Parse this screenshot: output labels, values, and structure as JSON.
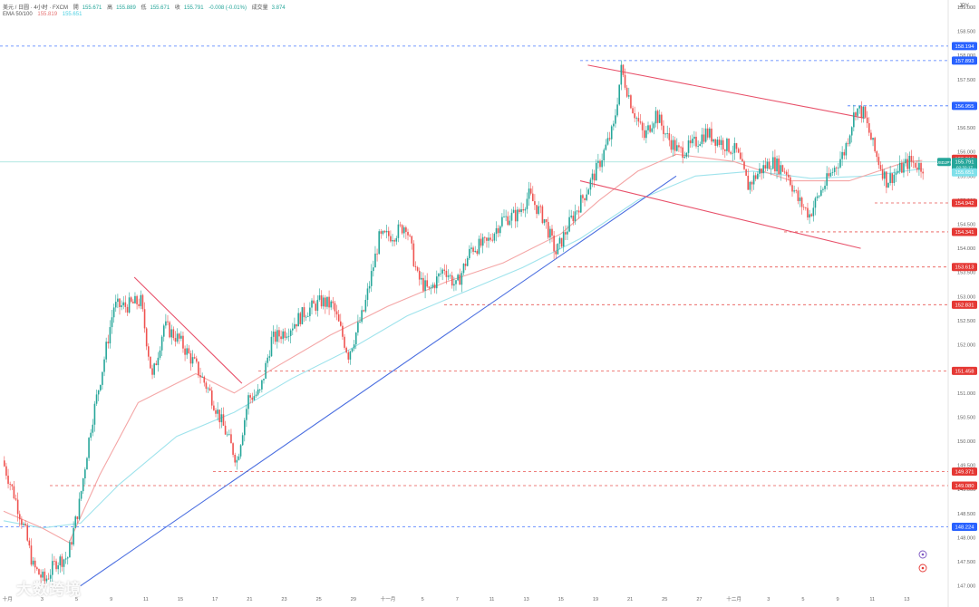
{
  "header": {
    "symbol_line": "美元 / 日圆 · 4小时 · FXCM",
    "open_label": "開",
    "open_value": "155.671",
    "high_label": "高",
    "high_value": "155.889",
    "low_label": "低",
    "low_value": "155.671",
    "close_label": "收",
    "close_value": "155.791",
    "change": "-0.008 (-0.01%)",
    "volume_label": "成交量",
    "volume_value": "3.874",
    "ema_label": "EMA 50/100",
    "ema50_value": "155.819",
    "ema100_value": "155.651"
  },
  "currency": "JPY",
  "watermark": "大数跨境",
  "colors": {
    "up": "#26a69a",
    "down": "#ef5350",
    "ema50": "#f4a6a6",
    "ema100": "#9fe3ec",
    "trend_up": "#4a6ee0",
    "channel": "#e8516a",
    "blue_level": "#2962ff",
    "red_level": "#e53935"
  },
  "chart_data": {
    "type": "candlestick",
    "title": "",
    "ylim": [
      146.9,
      159.15
    ],
    "y_ticks": [
      159.5,
      159.0,
      158.5,
      158.0,
      157.5,
      157.0,
      156.5,
      156.0,
      155.5,
      155.0,
      154.5,
      154.0,
      153.5,
      153.0,
      152.5,
      152.0,
      151.5,
      151.0,
      150.5,
      150.0,
      149.5,
      149.0,
      148.5,
      148.0,
      147.5,
      147.0
    ],
    "x_tick_labels": [
      {
        "label": "十月",
        "bar": 2
      },
      {
        "label": "3",
        "bar": 20
      },
      {
        "label": "5",
        "bar": 38
      },
      {
        "label": "9",
        "bar": 56
      },
      {
        "label": "11",
        "bar": 74
      },
      {
        "label": "15",
        "bar": 92
      },
      {
        "label": "17",
        "bar": 110
      },
      {
        "label": "21",
        "bar": 128
      },
      {
        "label": "23",
        "bar": 146
      },
      {
        "label": "25",
        "bar": 164
      },
      {
        "label": "29",
        "bar": 182
      },
      {
        "label": "十一月",
        "bar": 200
      },
      {
        "label": "5",
        "bar": 218
      },
      {
        "label": "7",
        "bar": 236
      },
      {
        "label": "11",
        "bar": 254
      },
      {
        "label": "13",
        "bar": 272
      },
      {
        "label": "15",
        "bar": 290
      },
      {
        "label": "19",
        "bar": 308
      },
      {
        "label": "21",
        "bar": 326
      },
      {
        "label": "25",
        "bar": 344
      },
      {
        "label": "27",
        "bar": 362
      },
      {
        "label": "十二月",
        "bar": 380
      },
      {
        "label": "3",
        "bar": 398
      },
      {
        "label": "5",
        "bar": 416
      },
      {
        "label": "9",
        "bar": 434
      },
      {
        "label": "11",
        "bar": 452
      },
      {
        "label": "13",
        "bar": 470
      }
    ],
    "price_path": [
      [
        0,
        149.6
      ],
      [
        6,
        148.9
      ],
      [
        12,
        148.1
      ],
      [
        16,
        147.4
      ],
      [
        22,
        147.1
      ],
      [
        28,
        147.5
      ],
      [
        34,
        147.6
      ],
      [
        40,
        148.7
      ],
      [
        46,
        150.3
      ],
      [
        52,
        151.5
      ],
      [
        58,
        152.8
      ],
      [
        64,
        152.8
      ],
      [
        72,
        152.9
      ],
      [
        78,
        151.3
      ],
      [
        84,
        152.4
      ],
      [
        92,
        152.1
      ],
      [
        100,
        151.6
      ],
      [
        108,
        151.0
      ],
      [
        116,
        150.2
      ],
      [
        122,
        149.6
      ],
      [
        128,
        150.9
      ],
      [
        134,
        151.0
      ],
      [
        140,
        152.1
      ],
      [
        148,
        152.3
      ],
      [
        158,
        152.7
      ],
      [
        166,
        152.9
      ],
      [
        172,
        152.8
      ],
      [
        180,
        151.8
      ],
      [
        188,
        152.7
      ],
      [
        196,
        154.2
      ],
      [
        204,
        154.3
      ],
      [
        210,
        154.5
      ],
      [
        216,
        153.4
      ],
      [
        222,
        153.1
      ],
      [
        230,
        153.6
      ],
      [
        236,
        153.2
      ],
      [
        244,
        154.0
      ],
      [
        252,
        154.1
      ],
      [
        260,
        154.6
      ],
      [
        268,
        154.7
      ],
      [
        274,
        155.1
      ],
      [
        282,
        154.6
      ],
      [
        288,
        153.9
      ],
      [
        296,
        154.6
      ],
      [
        304,
        155.2
      ],
      [
        310,
        155.7
      ],
      [
        318,
        156.5
      ],
      [
        322,
        157.7
      ],
      [
        328,
        156.9
      ],
      [
        334,
        156.3
      ],
      [
        340,
        156.8
      ],
      [
        346,
        156.3
      ],
      [
        352,
        156.0
      ],
      [
        358,
        156.1
      ],
      [
        366,
        156.4
      ],
      [
        374,
        156.2
      ],
      [
        382,
        156.0
      ],
      [
        388,
        155.3
      ],
      [
        394,
        155.6
      ],
      [
        400,
        155.8
      ],
      [
        408,
        155.6
      ],
      [
        414,
        155.0
      ],
      [
        420,
        154.7
      ],
      [
        426,
        155.2
      ],
      [
        432,
        155.6
      ],
      [
        438,
        156.0
      ],
      [
        444,
        156.9
      ],
      [
        448,
        156.8
      ],
      [
        454,
        156.0
      ],
      [
        460,
        155.4
      ],
      [
        466,
        155.6
      ],
      [
        472,
        155.8
      ],
      [
        478,
        155.7
      ]
    ],
    "ema50": [
      [
        0,
        148.55
      ],
      [
        20,
        148.2
      ],
      [
        34,
        147.9
      ],
      [
        50,
        149.3
      ],
      [
        70,
        150.8
      ],
      [
        100,
        151.4
      ],
      [
        120,
        151.0
      ],
      [
        140,
        151.5
      ],
      [
        170,
        152.2
      ],
      [
        200,
        152.8
      ],
      [
        230,
        153.3
      ],
      [
        260,
        153.7
      ],
      [
        290,
        154.3
      ],
      [
        310,
        155.0
      ],
      [
        330,
        155.6
      ],
      [
        350,
        155.95
      ],
      [
        380,
        155.8
      ],
      [
        410,
        155.4
      ],
      [
        440,
        155.4
      ],
      [
        470,
        155.8
      ],
      [
        478,
        155.82
      ]
    ],
    "ema100": [
      [
        0,
        148.35
      ],
      [
        20,
        148.2
      ],
      [
        40,
        148.3
      ],
      [
        60,
        149.1
      ],
      [
        90,
        150.1
      ],
      [
        120,
        150.6
      ],
      [
        150,
        151.3
      ],
      [
        180,
        151.9
      ],
      [
        210,
        152.6
      ],
      [
        240,
        153.1
      ],
      [
        270,
        153.6
      ],
      [
        300,
        154.2
      ],
      [
        330,
        155.0
      ],
      [
        360,
        155.5
      ],
      [
        390,
        155.6
      ],
      [
        420,
        155.45
      ],
      [
        450,
        155.5
      ],
      [
        478,
        155.65
      ]
    ],
    "trendlines": [
      {
        "kind": "support",
        "from": [
          40,
          147.0
        ],
        "to": [
          350,
          155.5
        ]
      },
      {
        "kind": "resistance",
        "from": [
          68,
          153.4
        ],
        "to": [
          124,
          151.2
        ]
      },
      {
        "kind": "channel-top",
        "from": [
          304,
          157.8
        ],
        "to": [
          448,
          156.7
        ]
      },
      {
        "kind": "channel-bottom",
        "from": [
          300,
          155.4
        ],
        "to": [
          446,
          154.0
        ]
      }
    ],
    "levels": [
      {
        "value": 159.5,
        "label": "",
        "kind": "blue"
      },
      {
        "value": 158.194,
        "label": "158.194",
        "kind": "blue"
      },
      {
        "value": 157.893,
        "label": "157.893",
        "kind": "blue"
      },
      {
        "value": 156.955,
        "label": "156.955",
        "kind": "blue"
      },
      {
        "value": 154.942,
        "label": "154.942",
        "kind": "red"
      },
      {
        "value": 154.341,
        "label": "154.341",
        "kind": "red"
      },
      {
        "value": 153.613,
        "label": "153.613",
        "kind": "red"
      },
      {
        "value": 152.831,
        "label": "152.831",
        "kind": "red"
      },
      {
        "value": 151.458,
        "label": "151.458",
        "kind": "red"
      },
      {
        "value": 149.371,
        "label": "149.371",
        "kind": "red"
      },
      {
        "value": 149.08,
        "label": "149.080",
        "kind": "red"
      },
      {
        "value": 148.224,
        "label": "148.224",
        "kind": "blue"
      }
    ],
    "badges": [
      {
        "value": 155.819,
        "label": "155.819",
        "kind": "ema50"
      },
      {
        "value": 155.791,
        "label": "155.791",
        "kind": "last",
        "symbol": "USDJPY",
        "countdown": "02:32:17"
      },
      {
        "value": 155.651,
        "label": "155.651",
        "kind": "ema100"
      }
    ]
  }
}
